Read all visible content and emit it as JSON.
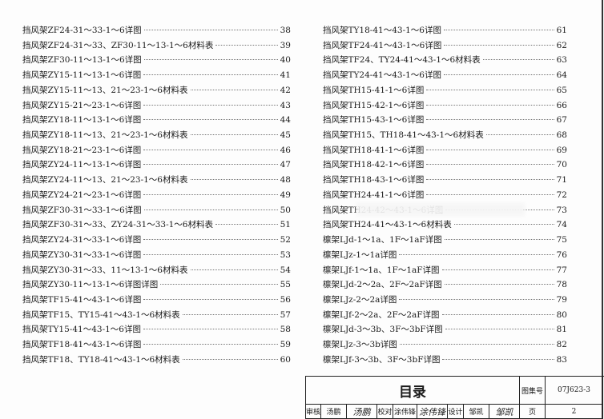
{
  "toc_left": [
    {
      "title": "挡风架ZF24-31～33-1～6详图",
      "page": "38"
    },
    {
      "title": "挡风架ZF24-31～33、ZF30-11～13-1～6材料表",
      "page": "39"
    },
    {
      "title": "挡风架ZF30-11～13-1～6详图",
      "page": "40"
    },
    {
      "title": "挡风架ZY15-11～13-1～6详图",
      "page": "41"
    },
    {
      "title": "挡风架ZY15-11～13、21～23-1～6材料表",
      "page": "42"
    },
    {
      "title": "挡风架ZY15-21～23-1～6详图",
      "page": "43"
    },
    {
      "title": "挡风架ZY18-11～13-1～6详图",
      "page": "44"
    },
    {
      "title": "挡风架ZY18-11～13、21～23-1～6材料表",
      "page": "45"
    },
    {
      "title": "挡风架ZY18-21～23-1～6详图",
      "page": "46"
    },
    {
      "title": "挡风架ZY24-11～13-1～6详图",
      "page": "47"
    },
    {
      "title": "挡风架ZY24-11～13、21～23-1～6材料表",
      "page": "48"
    },
    {
      "title": "挡风架ZY24-21～23-1～6详图",
      "page": "49"
    },
    {
      "title": "挡风架ZF30-31～33-1～6详图",
      "page": "50"
    },
    {
      "title": "挡风架ZF30-31～33、ZY24-31～33-1～6材料表",
      "page": "51"
    },
    {
      "title": "挡风架ZY24-31～33-1～6详图",
      "page": "52"
    },
    {
      "title": "挡风架ZY30-31～33-1～6详图",
      "page": "53"
    },
    {
      "title": "挡风架ZY30-31～33、11～13-1～6材料表",
      "page": "54"
    },
    {
      "title": "挡风架ZY30-11～13-1～6详图详图",
      "page": "55"
    },
    {
      "title": "挡风架TF15-41～43-1～6详图",
      "page": "56"
    },
    {
      "title": "挡风架TF15、TY15-41～43-1～6材料表",
      "page": "57"
    },
    {
      "title": "挡风架TY15-41～43-1～6详图",
      "page": "58"
    },
    {
      "title": "挡风架TF18-41～43-1～6详图",
      "page": "59"
    },
    {
      "title": "挡风架TF18、TY18-41～43-1～6材料表",
      "page": "60"
    }
  ],
  "toc_right": [
    {
      "title": "挡风架TY18-41～43-1～6详图",
      "page": "61"
    },
    {
      "title": "挡风架TF24-41～43-1～6详图",
      "page": "62"
    },
    {
      "title": "挡风架TF24、TY24-41～43-1～6材料表",
      "page": "63"
    },
    {
      "title": "挡风架TY24-41～43-1～6详图",
      "page": "64"
    },
    {
      "title": "挡风架TH15-41-1～6详图",
      "page": "65"
    },
    {
      "title": "挡风架TH15-42-1～6详图",
      "page": "66"
    },
    {
      "title": "挡风架TH15-43-1～6详图",
      "page": "67"
    },
    {
      "title": "挡风架TH15、TH18-41～43-1～6材料表",
      "page": "68"
    },
    {
      "title": "挡风架TH18-41-1～6详图",
      "page": "69"
    },
    {
      "title": "挡风架TH18-42-1～6详图",
      "page": "70"
    },
    {
      "title": "挡风架TH18-43-1～6详图",
      "page": "71"
    },
    {
      "title": "挡风架TH24-41-1～6详图",
      "page": "72"
    },
    {
      "title": "挡风架TH24-42～43-1～6详图",
      "page": "73"
    },
    {
      "title": "挡风架TH24-41～43-1～6材料表",
      "page": "74"
    },
    {
      "title": "檩架LJd-1～1a、1F～1aF详图",
      "page": "75"
    },
    {
      "title": "檩架LJz-1～1a详图",
      "page": "76"
    },
    {
      "title": "檩架LJf-1～1a、1F～1aF详图",
      "page": "77"
    },
    {
      "title": "檩架LJd-2～2a、2F～2aF详图",
      "page": "78"
    },
    {
      "title": "檩架LJz-2～2a详图",
      "page": "79"
    },
    {
      "title": "檩架LJf-2～2a、2F～2aF详图",
      "page": "80"
    },
    {
      "title": "檩架LJd-3～3b、3F～3bF详图",
      "page": "81"
    },
    {
      "title": "檩架LJz-3～3b详图",
      "page": "82"
    },
    {
      "title": "檩架LJf-3～3b、3F～3bF详图",
      "page": "83"
    }
  ],
  "title_block": {
    "title": "目录",
    "atlas_no_label": "图集号",
    "atlas_no": "07J623-3",
    "page_label": "页",
    "page": "2",
    "review_label": "审核",
    "reviewer": "汤鹏",
    "reviewer_sig": "汤鹏",
    "check_label": "校对",
    "checker": "涂伟锋",
    "checker_sig": "涂伟锋",
    "design_label": "设计",
    "designer": "邹凯",
    "designer_sig": "邹凯"
  }
}
